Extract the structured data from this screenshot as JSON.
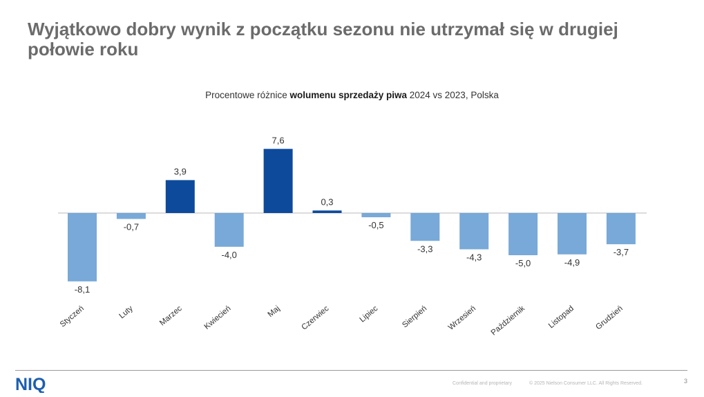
{
  "slide": {
    "title": "Wyjątkowo dobry wynik z początku sezonu nie utrzymał się w drugiej połowie roku",
    "page_number": "3"
  },
  "chart_data": {
    "type": "bar",
    "title": "Procentowe różnice wolumenu sprzedaży piwa 2024 vs 2023, Polska",
    "title_parts": {
      "prefix": "Procentowe różnice ",
      "bold": "wolumenu sprzedaży piwa",
      "suffix": " 2024 vs 2023, Polska"
    },
    "categories": [
      "Styczeń",
      "Luty",
      "Marzec",
      "Kwiecień",
      "Maj",
      "Czerwiec",
      "Lipiec",
      "Sierpień",
      "Wrzesień",
      "Październik",
      "Listopad",
      "Grudzień"
    ],
    "values": [
      -8.1,
      -0.7,
      3.9,
      -4.0,
      7.6,
      0.3,
      -0.5,
      -3.3,
      -4.3,
      -5.0,
      -4.9,
      -3.7
    ],
    "value_labels": [
      "-8,1",
      "-0,7",
      "3,9",
      "-4,0",
      "7,6",
      "0,3",
      "-0,5",
      "-3,3",
      "-4,3",
      "-5,0",
      "-4,9",
      "-3,7"
    ],
    "xlabel": "",
    "ylabel": "",
    "ylim": [
      -8.1,
      7.6
    ],
    "grid": false,
    "colors": {
      "positive": "#0d4a9c",
      "negative": "#78a9d8",
      "axis": "#d0d0d0"
    }
  },
  "footer": {
    "logo_text": "NIQ",
    "logo_color": "#1c5fb0",
    "confidential": "Confidential and proprietary",
    "copyright": "© 2025 Nielson Consumer LLC. All Rights Reserved."
  }
}
